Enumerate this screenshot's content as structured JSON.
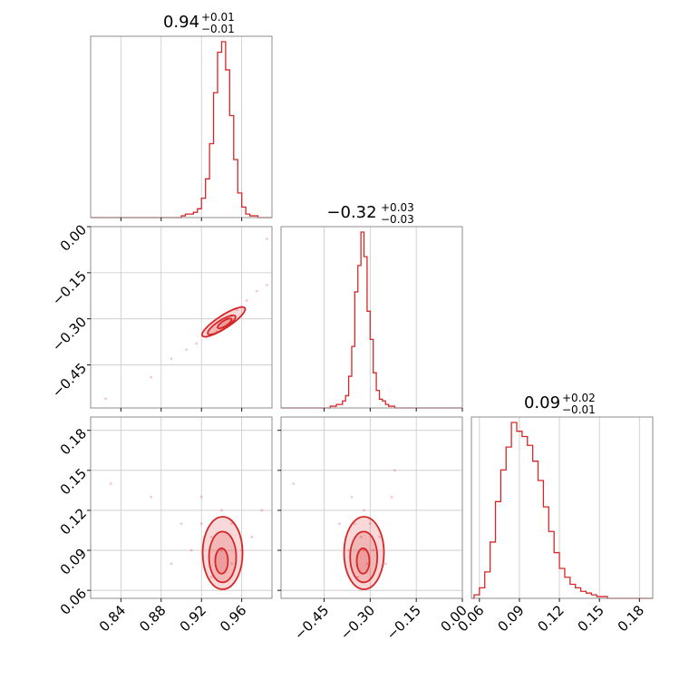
{
  "colors": {
    "accent": "#d62728",
    "grid": "#c8c8c8",
    "frame": "#8c8c8c"
  },
  "chart_data": {
    "type": "corner",
    "grid": true,
    "parameters": [
      {
        "title_value": "0.94",
        "title_plus": "+0.01",
        "title_minus": "−0.01",
        "range": [
          0.81,
          0.99
        ]
      },
      {
        "title_value": "−0.32",
        "title_plus": "+0.03",
        "title_minus": "−0.03",
        "range": [
          -0.59,
          0.0
        ]
      },
      {
        "title_value": "0.09",
        "title_plus": "+0.02",
        "title_minus": "−0.01",
        "range": [
          0.054,
          0.19
        ]
      }
    ],
    "ticks": [
      {
        "values": [
          0.84,
          0.88,
          0.92,
          0.96
        ],
        "labels": [
          "0.84",
          "0.88",
          "0.92",
          "0.96"
        ]
      },
      {
        "values": [
          -0.45,
          -0.3,
          -0.15,
          0.0
        ],
        "labels": [
          "−0.45",
          "−0.30",
          "−0.15",
          "0.00"
        ]
      },
      {
        "values": [
          0.06,
          0.09,
          0.12,
          0.15,
          0.18
        ],
        "labels": [
          "0.06",
          "0.09",
          "0.12",
          "0.15",
          "0.18"
        ]
      }
    ],
    "histograms": [
      {
        "bin_edges": [
          0.9,
          0.904,
          0.908,
          0.912,
          0.916,
          0.92,
          0.924,
          0.928,
          0.932,
          0.936,
          0.94,
          0.944,
          0.948,
          0.952,
          0.956,
          0.96,
          0.964,
          0.968,
          0.972,
          0.976,
          0.98
        ],
        "counts": [
          0.01,
          0.02,
          0.02,
          0.03,
          0.05,
          0.11,
          0.22,
          0.42,
          0.71,
          0.94,
          1.0,
          0.84,
          0.58,
          0.33,
          0.14,
          0.06,
          0.02,
          0.01,
          0.01,
          0.0
        ]
      },
      {
        "bin_edges": [
          -0.44,
          -0.43,
          -0.42,
          -0.41,
          -0.4,
          -0.39,
          -0.38,
          -0.37,
          -0.36,
          -0.35,
          -0.34,
          -0.33,
          -0.32,
          -0.31,
          -0.3,
          -0.29,
          -0.28,
          -0.27,
          -0.26,
          -0.25,
          -0.24,
          -0.23,
          -0.22,
          -0.21,
          -0.2
        ],
        "counts": [
          0.0,
          0.01,
          0.01,
          0.02,
          0.02,
          0.04,
          0.07,
          0.18,
          0.35,
          0.66,
          0.81,
          1.0,
          0.86,
          0.55,
          0.39,
          0.2,
          0.1,
          0.05,
          0.04,
          0.02,
          0.01,
          0.01,
          0.0,
          0.0
        ]
      },
      {
        "bin_edges": [
          0.056,
          0.06,
          0.064,
          0.068,
          0.072,
          0.076,
          0.08,
          0.084,
          0.088,
          0.092,
          0.096,
          0.1,
          0.104,
          0.108,
          0.112,
          0.116,
          0.12,
          0.124,
          0.128,
          0.132,
          0.136,
          0.14,
          0.144,
          0.148,
          0.152,
          0.156,
          0.16
        ],
        "counts": [
          0.02,
          0.06,
          0.15,
          0.32,
          0.55,
          0.73,
          0.86,
          1.0,
          0.95,
          0.92,
          0.87,
          0.78,
          0.67,
          0.52,
          0.38,
          0.26,
          0.17,
          0.12,
          0.08,
          0.06,
          0.04,
          0.03,
          0.02,
          0.01,
          0.01,
          0.0
        ]
      }
    ],
    "scatter_2d": [
      {
        "x_param": 0,
        "y_param": 1,
        "points": [
          [
            0.945,
            -0.3
          ],
          [
            0.935,
            -0.34
          ],
          [
            0.955,
            -0.27
          ],
          [
            0.925,
            -0.36
          ],
          [
            0.965,
            -0.24
          ],
          [
            0.915,
            -0.38
          ],
          [
            0.975,
            -0.21
          ],
          [
            0.905,
            -0.4
          ],
          [
            0.985,
            -0.19
          ],
          [
            0.89,
            -0.43
          ],
          [
            0.87,
            -0.49
          ],
          [
            0.825,
            -0.56
          ],
          [
            0.985,
            -0.04
          ],
          [
            0.95,
            -0.29
          ],
          [
            0.93,
            -0.35
          ],
          [
            0.96,
            -0.26
          ]
        ],
        "contour_centers": [
          [
            0.942,
            -0.31
          ],
          [
            0.94,
            -0.32
          ],
          [
            0.943,
            -0.315
          ]
        ]
      },
      {
        "x_param": 0,
        "y_param": 2,
        "points": [
          [
            0.94,
            0.09
          ],
          [
            0.93,
            0.1
          ],
          [
            0.95,
            0.08
          ],
          [
            0.92,
            0.11
          ],
          [
            0.96,
            0.09
          ],
          [
            0.94,
            0.12
          ],
          [
            0.93,
            0.07
          ],
          [
            0.95,
            0.11
          ],
          [
            0.91,
            0.09
          ],
          [
            0.97,
            0.1
          ],
          [
            0.9,
            0.11
          ],
          [
            0.89,
            0.08
          ],
          [
            0.83,
            0.14
          ],
          [
            0.87,
            0.13
          ],
          [
            0.98,
            0.12
          ],
          [
            0.92,
            0.13
          ]
        ],
        "contour_centers": [
          [
            0.941,
            0.088
          ],
          [
            0.941,
            0.085
          ],
          [
            0.94,
            0.082
          ]
        ]
      },
      {
        "x_param": 1,
        "y_param": 2,
        "points": [
          [
            -0.32,
            0.09
          ],
          [
            -0.33,
            0.1
          ],
          [
            -0.31,
            0.08
          ],
          [
            -0.35,
            0.11
          ],
          [
            -0.29,
            0.09
          ],
          [
            -0.32,
            0.12
          ],
          [
            -0.34,
            0.07
          ],
          [
            -0.3,
            0.11
          ],
          [
            -0.37,
            0.09
          ],
          [
            -0.27,
            0.1
          ],
          [
            -0.4,
            0.11
          ],
          [
            -0.25,
            0.08
          ],
          [
            -0.55,
            0.14
          ],
          [
            -0.23,
            0.13
          ],
          [
            -0.22,
            0.15
          ],
          [
            -0.36,
            0.13
          ]
        ],
        "contour_centers": [
          [
            -0.32,
            0.088
          ],
          [
            -0.321,
            0.085
          ],
          [
            -0.323,
            0.082
          ]
        ]
      }
    ]
  }
}
